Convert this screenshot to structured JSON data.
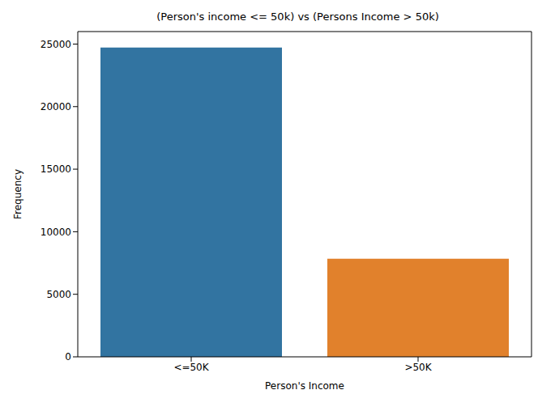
{
  "chart_data": {
    "type": "bar",
    "title": "(Person's income <= 50k) vs (Persons Income > 50k)",
    "x_label": "Person's Income",
    "y_label": "Frequency",
    "categories": [
      "<=50K",
      ">50K"
    ],
    "values": [
      24720,
      7841
    ],
    "colors": [
      "#3274a1",
      "#e1812c"
    ],
    "ylim": [
      0,
      26000
    ],
    "yticks": [
      0,
      5000,
      10000,
      15000,
      20000,
      25000
    ],
    "grid": false
  }
}
